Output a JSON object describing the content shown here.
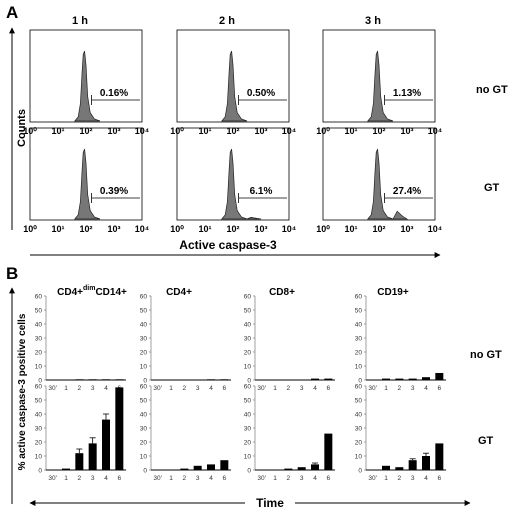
{
  "panelA": {
    "label": "A",
    "col_titles": [
      "1 h",
      "2 h",
      "3 h"
    ],
    "row_labels": [
      "no GT",
      "GT"
    ],
    "y_label": "Counts",
    "x_label": "Active caspase-3",
    "tick_labels": [
      "10⁰",
      "10¹",
      "10²",
      "10³",
      "10⁴"
    ],
    "gate_labels": [
      [
        "0.16%",
        "0.50%",
        "1.13%"
      ],
      [
        "0.39%",
        "6.1%",
        "27.4%"
      ]
    ]
  },
  "panelB": {
    "label": "B",
    "col_titles": [
      "CD4+dimCD14+",
      "CD4+",
      "CD8+",
      "CD19+"
    ],
    "row_labels": [
      "no GT",
      "GT"
    ],
    "y_label": "% active caspase-3 positive cells",
    "x_label": "Time"
  },
  "chart_data": [
    {
      "type": "histogram",
      "title": "Flow cytometry histograms",
      "xlabel": "Active caspase-3",
      "ylabel": "Counts",
      "x_scale": "log",
      "xlim": [
        1,
        10000
      ],
      "columns": [
        "1 h",
        "2 h",
        "3 h"
      ],
      "rows": [
        "no GT",
        "GT"
      ],
      "gate_percent": [
        [
          0.16,
          0.5,
          1.13
        ],
        [
          0.39,
          6.1,
          27.4
        ]
      ]
    },
    {
      "type": "bar",
      "xlabel": "Time",
      "ylabel": "% active caspase-3 positive cells",
      "ylim": [
        0,
        60
      ],
      "yticks": [
        0,
        10,
        20,
        30,
        40,
        50,
        60
      ],
      "categories": [
        "30'",
        "1",
        "2",
        "3",
        "4",
        "6"
      ],
      "panels": [
        {
          "cell": "CD4+dimCD14+",
          "condition": "no GT",
          "values": [
            0,
            0,
            0.5,
            0.5,
            0.5,
            0.5
          ],
          "errors": [
            0,
            0,
            0,
            0,
            0,
            0
          ]
        },
        {
          "cell": "CD4+",
          "condition": "no GT",
          "values": [
            0,
            0,
            0,
            0,
            0.5,
            0.5
          ],
          "errors": [
            0,
            0,
            0,
            0,
            0,
            0
          ]
        },
        {
          "cell": "CD8+",
          "condition": "no GT",
          "values": [
            0,
            0,
            0,
            0,
            1,
            1
          ],
          "errors": [
            0,
            0,
            0,
            0,
            0,
            0
          ]
        },
        {
          "cell": "CD19+",
          "condition": "no GT",
          "values": [
            0,
            1,
            1,
            1,
            2,
            5
          ],
          "errors": [
            0,
            0,
            0,
            0,
            0,
            0
          ]
        },
        {
          "cell": "CD4+dimCD14+",
          "condition": "GT",
          "values": [
            0,
            1,
            12,
            19,
            36,
            59
          ],
          "errors": [
            0,
            0,
            3,
            4,
            4,
            0
          ]
        },
        {
          "cell": "CD4+",
          "condition": "GT",
          "values": [
            0,
            0,
            1,
            3,
            4,
            7
          ],
          "errors": [
            0,
            0,
            0,
            0,
            0,
            0
          ]
        },
        {
          "cell": "CD8+",
          "condition": "GT",
          "values": [
            0,
            0,
            1,
            2,
            4,
            26
          ],
          "errors": [
            0,
            0,
            0,
            0,
            1,
            0
          ]
        },
        {
          "cell": "CD19+",
          "condition": "GT",
          "values": [
            0,
            3,
            2,
            7,
            10,
            19
          ],
          "errors": [
            0,
            0,
            0,
            1,
            2,
            0
          ]
        }
      ]
    }
  ]
}
